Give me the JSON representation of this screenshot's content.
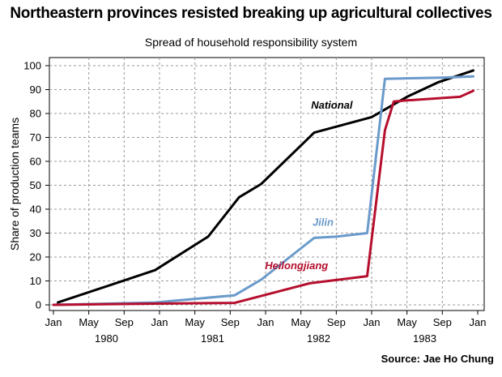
{
  "title": "Northeastern provinces resisted breaking up agricultural collectives",
  "subtitle": "Spread of household responsibility system",
  "source": "Source: Jae Ho Chung",
  "chart_data": {
    "type": "line",
    "ylabel": "Share of production teams",
    "xlabel": "",
    "ylim": [
      0,
      100
    ],
    "yticks": [
      0,
      10,
      20,
      30,
      40,
      50,
      60,
      70,
      80,
      90,
      100
    ],
    "x_range_months": [
      0,
      48
    ],
    "month_ticks": [
      {
        "m": 0,
        "label": "Jan"
      },
      {
        "m": 4,
        "label": "May"
      },
      {
        "m": 8,
        "label": "Sep"
      },
      {
        "m": 12,
        "label": "Jan"
      },
      {
        "m": 16,
        "label": "May"
      },
      {
        "m": 20,
        "label": "Sep"
      },
      {
        "m": 24,
        "label": "Jan"
      },
      {
        "m": 28,
        "label": "May"
      },
      {
        "m": 32,
        "label": "Sep"
      },
      {
        "m": 36,
        "label": "Jan"
      },
      {
        "m": 40,
        "label": "May"
      },
      {
        "m": 44,
        "label": "Sep"
      },
      {
        "m": 48,
        "label": "Jan"
      }
    ],
    "years": [
      {
        "m": 6,
        "label": "1980"
      },
      {
        "m": 18,
        "label": "1981"
      },
      {
        "m": 30,
        "label": "1982"
      },
      {
        "m": 42,
        "label": "1983"
      }
    ],
    "grid": true,
    "series": [
      {
        "name": "National",
        "color": "#000000",
        "points": [
          [
            0.5,
            1
          ],
          [
            11.5,
            14.5
          ],
          [
            17.5,
            28.5
          ],
          [
            21,
            45
          ],
          [
            23.5,
            50.5
          ],
          [
            29.5,
            72
          ],
          [
            35.5,
            78
          ],
          [
            36,
            78.5
          ],
          [
            40,
            87
          ],
          [
            43.5,
            93
          ],
          [
            47.5,
            98
          ]
        ]
      },
      {
        "name": "Jilin",
        "color": "#6a9acb",
        "points": [
          [
            0,
            0
          ],
          [
            11.5,
            1
          ],
          [
            20.5,
            4
          ],
          [
            23.5,
            10.5
          ],
          [
            29.5,
            28
          ],
          [
            32,
            28.5
          ],
          [
            35.5,
            30
          ],
          [
            37.5,
            94.5
          ],
          [
            44,
            95
          ],
          [
            47.5,
            95.5
          ]
        ]
      },
      {
        "name": "Heilongjiang",
        "color": "#b60f2e",
        "points": [
          [
            0,
            0
          ],
          [
            11.5,
            0.5
          ],
          [
            20.5,
            0.8
          ],
          [
            29,
            9
          ],
          [
            35.5,
            12
          ],
          [
            37.5,
            73
          ],
          [
            38.5,
            85
          ],
          [
            40,
            85.5
          ],
          [
            46,
            87
          ],
          [
            47.5,
            89.5
          ]
        ]
      }
    ],
    "annotations": [
      {
        "series": "National",
        "text": "National",
        "m": 31.5,
        "y": 82
      },
      {
        "series": "Jilin",
        "text": "Jilin",
        "m": 30.5,
        "y": 33
      },
      {
        "series": "Heilongjiang",
        "text": "Heilongjiang",
        "m": 27.5,
        "y": 15
      }
    ]
  }
}
